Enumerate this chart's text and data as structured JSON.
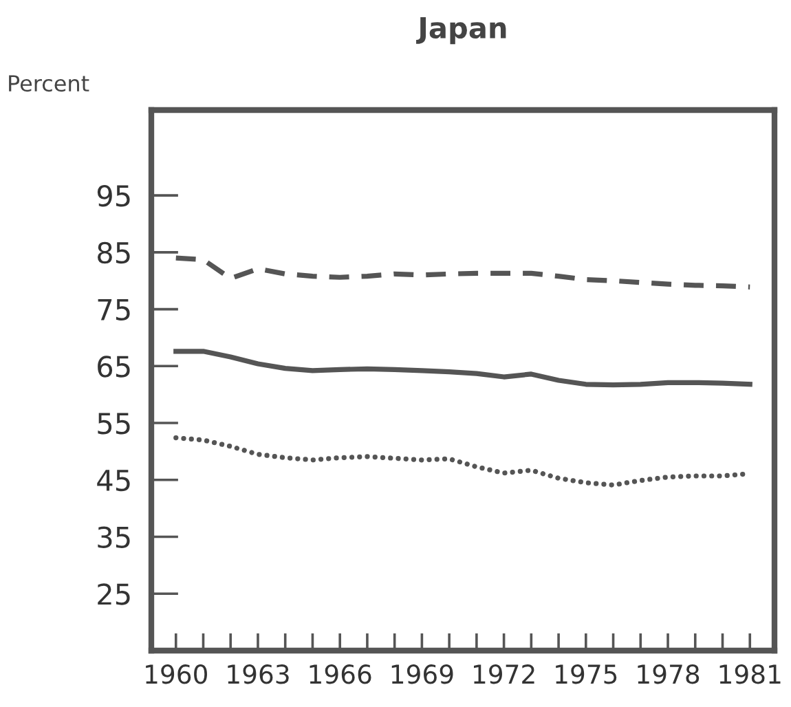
{
  "chart_data": {
    "type": "line",
    "title": "Japan",
    "ylabel": "Percent",
    "x": [
      1960,
      1961,
      1962,
      1963,
      1964,
      1965,
      1966,
      1967,
      1968,
      1969,
      1970,
      1971,
      1972,
      1973,
      1974,
      1975,
      1976,
      1977,
      1978,
      1979,
      1980,
      1981
    ],
    "series": [
      {
        "color": "#555555",
        "line_style": "dashed",
        "values": [
          84.0,
          83.7,
          80.4,
          82.1,
          81.2,
          80.8,
          80.6,
          80.8,
          81.2,
          81.0,
          81.2,
          81.3,
          81.3,
          81.3,
          80.8,
          80.2,
          80.0,
          79.7,
          79.4,
          79.2,
          79.1,
          78.9
        ]
      },
      {
        "color": "#555555",
        "line_style": "solid",
        "values": [
          67.6,
          67.6,
          66.6,
          65.4,
          64.6,
          64.2,
          64.4,
          64.5,
          64.4,
          64.2,
          64.0,
          63.7,
          63.1,
          63.6,
          62.5,
          61.8,
          61.7,
          61.8,
          62.1,
          62.1,
          62.0,
          61.8
        ]
      },
      {
        "color": "#555555",
        "line_style": "dotted",
        "values": [
          52.4,
          52.0,
          50.9,
          49.5,
          48.9,
          48.5,
          48.9,
          49.1,
          48.8,
          48.5,
          48.7,
          47.3,
          46.2,
          46.7,
          45.3,
          44.5,
          44.1,
          44.9,
          45.5,
          45.7,
          45.7,
          46.1
        ]
      }
    ],
    "xlim": [
      1959.1,
      1981.9
    ],
    "ylim": [
      15,
      110
    ],
    "xticks": [
      1960,
      {
        "value": 1961,
        "label": null
      },
      {
        "value": 1962,
        "label": null
      },
      1963,
      {
        "value": 1964,
        "label": null
      },
      {
        "value": 1965,
        "label": null
      },
      1966,
      {
        "value": 1967,
        "label": null
      },
      {
        "value": 1968,
        "label": null
      },
      1969,
      {
        "value": 1970,
        "label": null
      },
      {
        "value": 1971,
        "label": null
      },
      1972,
      {
        "value": 1973,
        "label": null
      },
      {
        "value": 1974,
        "label": null
      },
      1975,
      {
        "value": 1976,
        "label": null
      },
      {
        "value": 1977,
        "label": null
      },
      1978,
      {
        "value": 1979,
        "label": null
      },
      {
        "value": 1980,
        "label": null
      },
      1981
    ],
    "yticks": [
      25,
      35,
      45,
      55,
      65,
      75,
      85,
      95
    ],
    "grid": false,
    "marker": "none"
  }
}
